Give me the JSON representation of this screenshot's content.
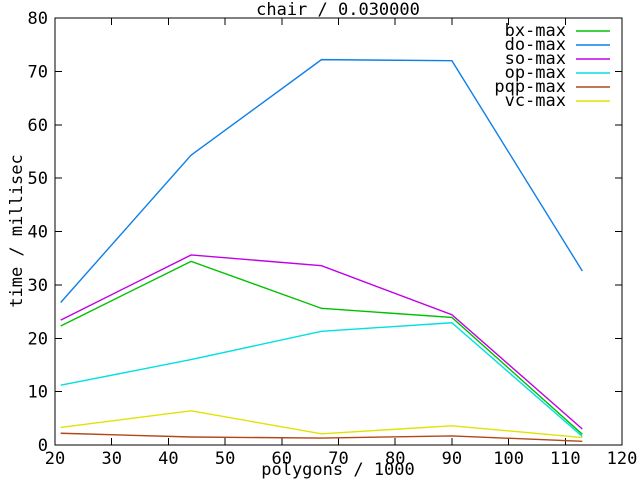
{
  "chart_data": {
    "type": "line",
    "title": "chair / 0.030000",
    "xlabel": "polygons / 1000",
    "ylabel": "time / millisec",
    "xlim": [
      20,
      120
    ],
    "ylim": [
      0,
      80
    ],
    "xticks": [
      20,
      30,
      40,
      50,
      60,
      70,
      80,
      90,
      100,
      110,
      120
    ],
    "yticks": [
      0,
      10,
      20,
      30,
      40,
      50,
      60,
      70,
      80
    ],
    "grid": false,
    "legend_position": "top-right-inside",
    "x": [
      21,
      44,
      67,
      90,
      113
    ],
    "series": [
      {
        "name": "bx-max",
        "color": "#00c000",
        "values": [
          22.3,
          34.4,
          25.6,
          23.9,
          2.0
        ]
      },
      {
        "name": "do-max",
        "color": "#0f80e8",
        "values": [
          26.7,
          54.3,
          72.2,
          72.0,
          32.6
        ]
      },
      {
        "name": "so-max",
        "color": "#c000e8",
        "values": [
          23.4,
          35.6,
          33.6,
          24.4,
          3.0
        ]
      },
      {
        "name": "op-max",
        "color": "#00e0e0",
        "values": [
          11.2,
          16.0,
          21.3,
          22.9,
          1.6
        ]
      },
      {
        "name": "pqp-max",
        "color": "#b04818",
        "values": [
          2.2,
          1.5,
          1.3,
          1.7,
          0.7
        ]
      },
      {
        "name": "vc-max",
        "color": "#e2e200",
        "values": [
          3.3,
          6.4,
          2.1,
          3.6,
          1.4
        ]
      }
    ]
  },
  "colors": {
    "background": "#ffffff",
    "axis": "#000000",
    "text": "#000000"
  }
}
